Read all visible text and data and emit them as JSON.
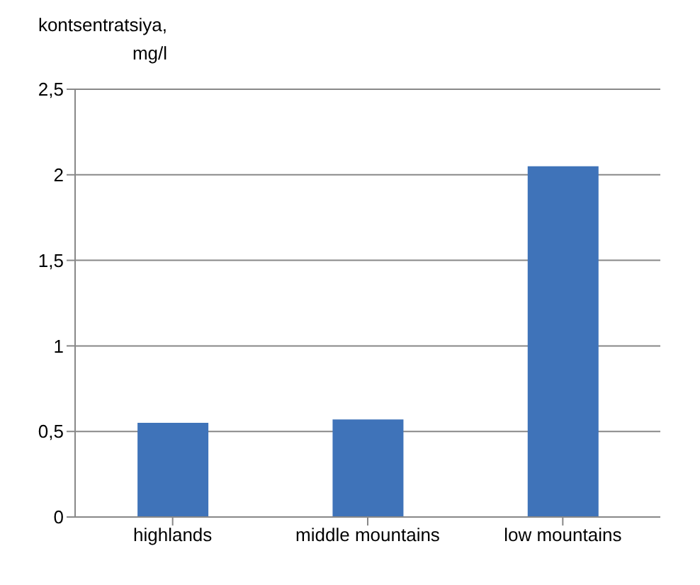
{
  "chart_data": {
    "type": "bar",
    "ylabel": "kontsentratsiya, mg/l",
    "categories": [
      "highlands",
      "middle mountains",
      "low mountains"
    ],
    "values": [
      0.55,
      0.57,
      2.05
    ],
    "color": "#3f73b9",
    "ylim": [
      0,
      2.5
    ],
    "yticks": [
      0,
      {
        "value": 0.5,
        "label": "0,5"
      },
      1,
      {
        "value": 1.5,
        "label": "1,5"
      },
      2,
      {
        "value": 2.5,
        "label": "2,5"
      }
    ],
    "grid": "y"
  }
}
